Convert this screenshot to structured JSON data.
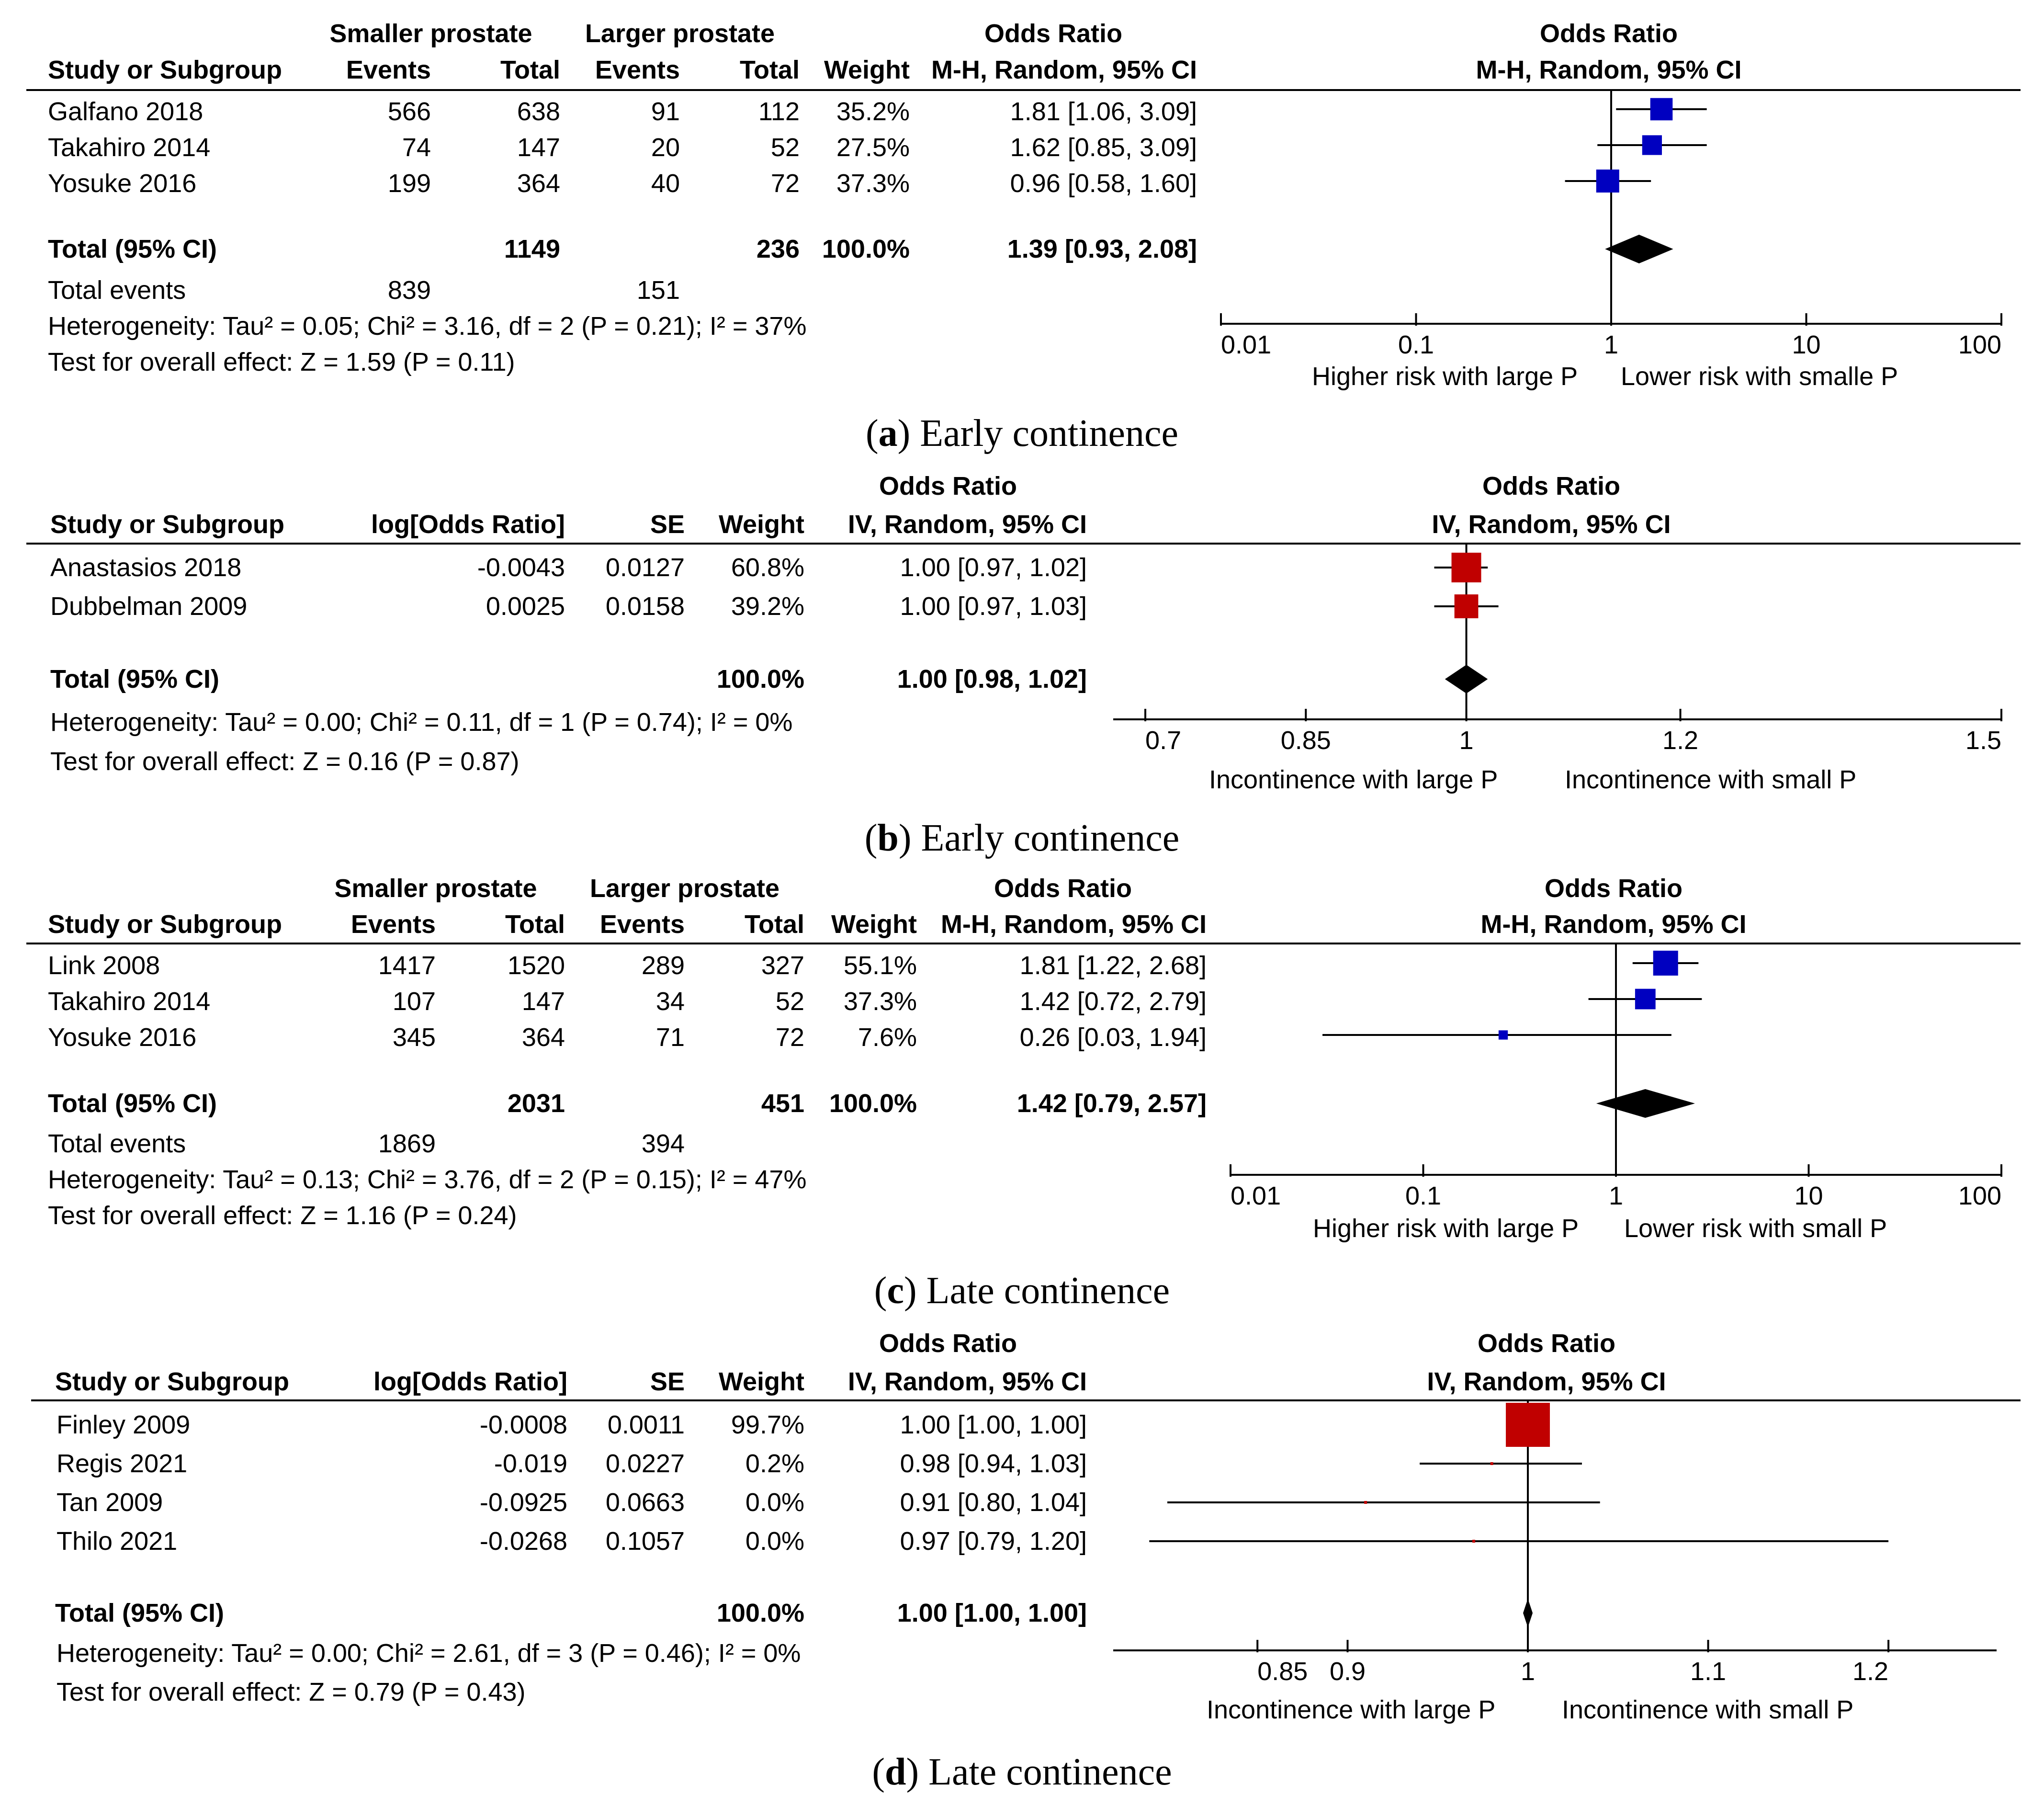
{
  "panels": [
    {
      "kind": "mh",
      "group1_label": "Smaller prostate",
      "group2_label": "Larger prostate",
      "headers": {
        "study": "Study or Subgroup",
        "events": "Events",
        "total": "Total",
        "weight": "Weight",
        "or_title": "Odds Ratio",
        "method": "M-H, Random, 95% CI"
      },
      "studies": [
        {
          "name": "Galfano 2018",
          "e1": "566",
          "t1": "638",
          "e2": "91",
          "t2": "112",
          "weight": "35.2%",
          "ci_text": "1.81 [1.06, 3.09]"
        },
        {
          "name": "Takahiro 2014",
          "e1": "74",
          "t1": "147",
          "e2": "20",
          "t2": "52",
          "weight": "27.5%",
          "ci_text": "1.62 [0.85, 3.09]"
        },
        {
          "name": "Yosuke 2016",
          "e1": "199",
          "t1": "364",
          "e2": "40",
          "t2": "72",
          "weight": "37.3%",
          "ci_text": "0.96 [0.58, 1.60]"
        }
      ],
      "total": {
        "label": "Total (95% CI)",
        "t1": "1149",
        "t2": "236",
        "weight": "100.0%",
        "ci_text": "1.39 [0.93, 2.08]"
      },
      "total_events": {
        "label": "Total events",
        "e1": "839",
        "e2": "151"
      },
      "heterogeneity": "Heterogeneity: Tau² = 0.05; Chi² = 3.16, df = 2 (P = 0.21); I² = 37%",
      "overall": "Test for overall effect: Z = 1.59 (P = 0.11)",
      "axis_left_label": "Higher risk with large P",
      "axis_right_label": "Lower risk with smalle P",
      "caption_letter": "a",
      "caption_text": ") Early continence"
    },
    {
      "kind": "iv",
      "headers": {
        "study": "Study or Subgroup",
        "logor": "log[Odds Ratio]",
        "se": "SE",
        "weight": "Weight",
        "or_title": "Odds Ratio",
        "method": "IV, Random, 95% CI"
      },
      "studies": [
        {
          "name": "Anastasios 2018",
          "logor": "-0.0043",
          "se": "0.0127",
          "weight": "60.8%",
          "ci_text": "1.00 [0.97, 1.02]"
        },
        {
          "name": "Dubbelman 2009",
          "logor": "0.0025",
          "se": "0.0158",
          "weight": "39.2%",
          "ci_text": "1.00 [0.97, 1.03]"
        }
      ],
      "total": {
        "label": "Total (95% CI)",
        "weight": "100.0%",
        "ci_text": "1.00 [0.98, 1.02]"
      },
      "heterogeneity": "Heterogeneity: Tau² = 0.00; Chi² = 0.11, df = 1 (P = 0.74); I² = 0%",
      "overall": "Test for overall effect: Z = 0.16 (P = 0.87)",
      "axis_left_label": "Incontinence with large P",
      "axis_right_label": "Incontinence with small P",
      "caption_letter": "b",
      "caption_text": ") Early continence"
    },
    {
      "kind": "mh",
      "group1_label": "Smaller prostate",
      "group2_label": "Larger prostate",
      "headers": {
        "study": "Study or Subgroup",
        "events": "Events",
        "total": "Total",
        "weight": "Weight",
        "or_title": "Odds Ratio",
        "method": "M-H, Random, 95% CI"
      },
      "studies": [
        {
          "name": "Link 2008",
          "e1": "1417",
          "t1": "1520",
          "e2": "289",
          "t2": "327",
          "weight": "55.1%",
          "ci_text": "1.81 [1.22, 2.68]"
        },
        {
          "name": "Takahiro 2014",
          "e1": "107",
          "t1": "147",
          "e2": "34",
          "t2": "52",
          "weight": "37.3%",
          "ci_text": "1.42 [0.72, 2.79]"
        },
        {
          "name": "Yosuke 2016",
          "e1": "345",
          "t1": "364",
          "e2": "71",
          "t2": "72",
          "weight": "7.6%",
          "ci_text": "0.26 [0.03, 1.94]"
        }
      ],
      "total": {
        "label": "Total (95% CI)",
        "t1": "2031",
        "t2": "451",
        "weight": "100.0%",
        "ci_text": "1.42 [0.79, 2.57]"
      },
      "total_events": {
        "label": "Total events",
        "e1": "1869",
        "e2": "394"
      },
      "heterogeneity": "Heterogeneity: Tau² = 0.13; Chi² = 3.76, df = 2 (P = 0.15); I² = 47%",
      "overall": "Test for overall effect: Z = 1.16 (P = 0.24)",
      "axis_left_label": "Higher risk with large P",
      "axis_right_label": "Lower risk with small P",
      "caption_letter": "c",
      "caption_text": ") Late continence"
    },
    {
      "kind": "iv",
      "headers": {
        "study": "Study or Subgroup",
        "logor": "log[Odds Ratio]",
        "se": "SE",
        "weight": "Weight",
        "or_title": "Odds Ratio",
        "method": "IV, Random, 95% CI"
      },
      "studies": [
        {
          "name": "Finley 2009",
          "logor": "-0.0008",
          "se": "0.0011",
          "weight": "99.7%",
          "ci_text": "1.00 [1.00, 1.00]"
        },
        {
          "name": "Regis 2021",
          "logor": "-0.019",
          "se": "0.0227",
          "weight": "0.2%",
          "ci_text": "0.98 [0.94, 1.03]"
        },
        {
          "name": "Tan 2009",
          "logor": "-0.0925",
          "se": "0.0663",
          "weight": "0.0%",
          "ci_text": "0.91 [0.80, 1.04]"
        },
        {
          "name": "Thilo 2021",
          "logor": "-0.0268",
          "se": "0.1057",
          "weight": "0.0%",
          "ci_text": "0.97 [0.79, 1.20]"
        }
      ],
      "total": {
        "label": "Total (95% CI)",
        "weight": "100.0%",
        "ci_text": "1.00 [1.00, 1.00]"
      },
      "heterogeneity": "Heterogeneity: Tau² = 0.00; Chi² = 2.61, df = 3 (P = 0.46); I² = 0%",
      "overall": "Test for overall effect: Z = 0.79 (P = 0.43)",
      "axis_left_label": "Incontinence with large P",
      "axis_right_label": "Incontinence with small P",
      "caption_letter": "d",
      "caption_text": ") Late continence"
    }
  ],
  "chart_data": [
    {
      "type": "forest",
      "scale": "log",
      "xlim": [
        0.01,
        100
      ],
      "ticks": [
        0.01,
        0.1,
        1,
        10,
        100
      ],
      "tick_labels": [
        "0.01",
        "0.1",
        "1",
        "10",
        "100"
      ],
      "marker_color": "#0000c0",
      "studies": [
        {
          "or": 1.81,
          "lo": 1.06,
          "hi": 3.09,
          "w": 35.2
        },
        {
          "or": 1.62,
          "lo": 0.85,
          "hi": 3.09,
          "w": 27.5
        },
        {
          "or": 0.96,
          "lo": 0.58,
          "hi": 1.6,
          "w": 37.3
        }
      ],
      "total": {
        "or": 1.39,
        "lo": 0.93,
        "hi": 2.08
      }
    },
    {
      "type": "forest",
      "scale": "linear",
      "xlim": [
        0.67,
        1.5
      ],
      "ticks": [
        0.7,
        0.85,
        1,
        1.2,
        1.5
      ],
      "tick_labels": [
        "0.7",
        "0.85",
        "1",
        "1.2",
        "1.5"
      ],
      "marker_color": "#c00000",
      "studies": [
        {
          "or": 1.0,
          "lo": 0.97,
          "hi": 1.02,
          "w": 60.8
        },
        {
          "or": 1.0,
          "lo": 0.97,
          "hi": 1.03,
          "w": 39.2
        }
      ],
      "total": {
        "or": 1.0,
        "lo": 0.98,
        "hi": 1.02
      }
    },
    {
      "type": "forest",
      "scale": "log",
      "xlim": [
        0.01,
        100
      ],
      "ticks": [
        0.01,
        0.1,
        1,
        10,
        100
      ],
      "tick_labels": [
        "0.01",
        "0.1",
        "1",
        "10",
        "100"
      ],
      "marker_color": "#0000c0",
      "studies": [
        {
          "or": 1.81,
          "lo": 1.22,
          "hi": 2.68,
          "w": 55.1
        },
        {
          "or": 1.42,
          "lo": 0.72,
          "hi": 2.79,
          "w": 37.3
        },
        {
          "or": 0.26,
          "lo": 0.03,
          "hi": 1.94,
          "w": 7.6
        }
      ],
      "total": {
        "or": 1.42,
        "lo": 0.79,
        "hi": 2.57
      }
    },
    {
      "type": "forest",
      "scale": "linear",
      "xlim": [
        0.77,
        1.26
      ],
      "ticks": [
        0.85,
        0.9,
        1,
        1.1,
        1.2
      ],
      "tick_labels": [
        "0.85",
        "0.9",
        "1",
        "1.1",
        "1.2"
      ],
      "marker_color": "#c00000",
      "studies": [
        {
          "or": 1.0,
          "lo": 1.0,
          "hi": 1.0,
          "w": 99.7
        },
        {
          "or": 0.98,
          "lo": 0.94,
          "hi": 1.03,
          "w": 0.2
        },
        {
          "or": 0.91,
          "lo": 0.8,
          "hi": 1.04,
          "w": 0.0
        },
        {
          "or": 0.97,
          "lo": 0.79,
          "hi": 1.2,
          "w": 0.0
        }
      ],
      "total": {
        "or": 1.0,
        "lo": 1.0,
        "hi": 1.0
      }
    }
  ]
}
